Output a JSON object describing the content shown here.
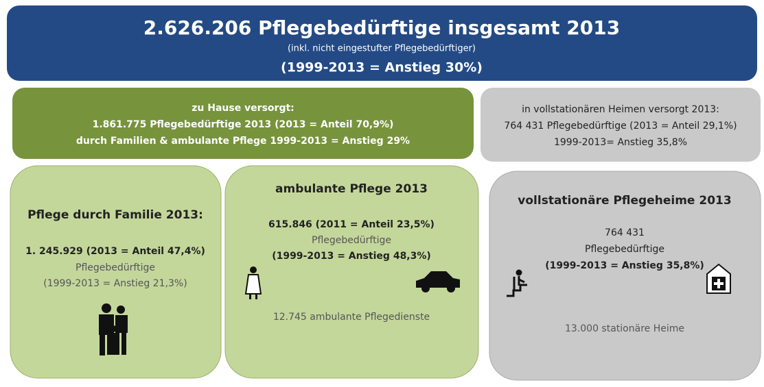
{
  "header": {
    "title": "2.626.206 Pflegebedürftige insgesamt 2013",
    "subtitle": "(inkl. nicht eingestufter Pflegebedürftiger)",
    "note": "(1999-2013 = Anstieg 30%)"
  },
  "home_care": {
    "lines": [
      "zu Hause versorgt:",
      "1.861.775 Pflegebedürftige 2013 (2013 = Anteil 70,9%)",
      "durch Familien & ambulante Pflege 1999-2013 = Anstieg 29%"
    ]
  },
  "residential_summary": {
    "lines": [
      "in vollstationären Heimen versorgt 2013:",
      "764 431 Pflegebedürftige (2013 = Anteil 29,1%)",
      "1999-2013= Anstieg 35,8%"
    ]
  },
  "family_care": {
    "heading": "Pflege durch Familie 2013:",
    "lines": [
      "1. 245.929 (2013 = Anteil 47,4%)",
      "Pflegebedürftige",
      "(1999-2013 = Anstieg 21,3%)"
    ]
  },
  "ambulant_care": {
    "heading": "ambulante Pflege 2013",
    "lines": [
      "615.846 (2011 = Anteil 23,5%)",
      "Pflegebedürftige",
      "(1999-2013 = Anstieg 48,3%)"
    ],
    "footer": "12.745 ambulante Pflegedienste"
  },
  "residential_care": {
    "heading": "vollstationäre Pflegeheime 2013",
    "lines": [
      "764 431",
      "Pflegebedürftige",
      "(1999-2013 = Anstieg 35,8%)"
    ],
    "footer": "13.000 stationäre Heime"
  }
}
